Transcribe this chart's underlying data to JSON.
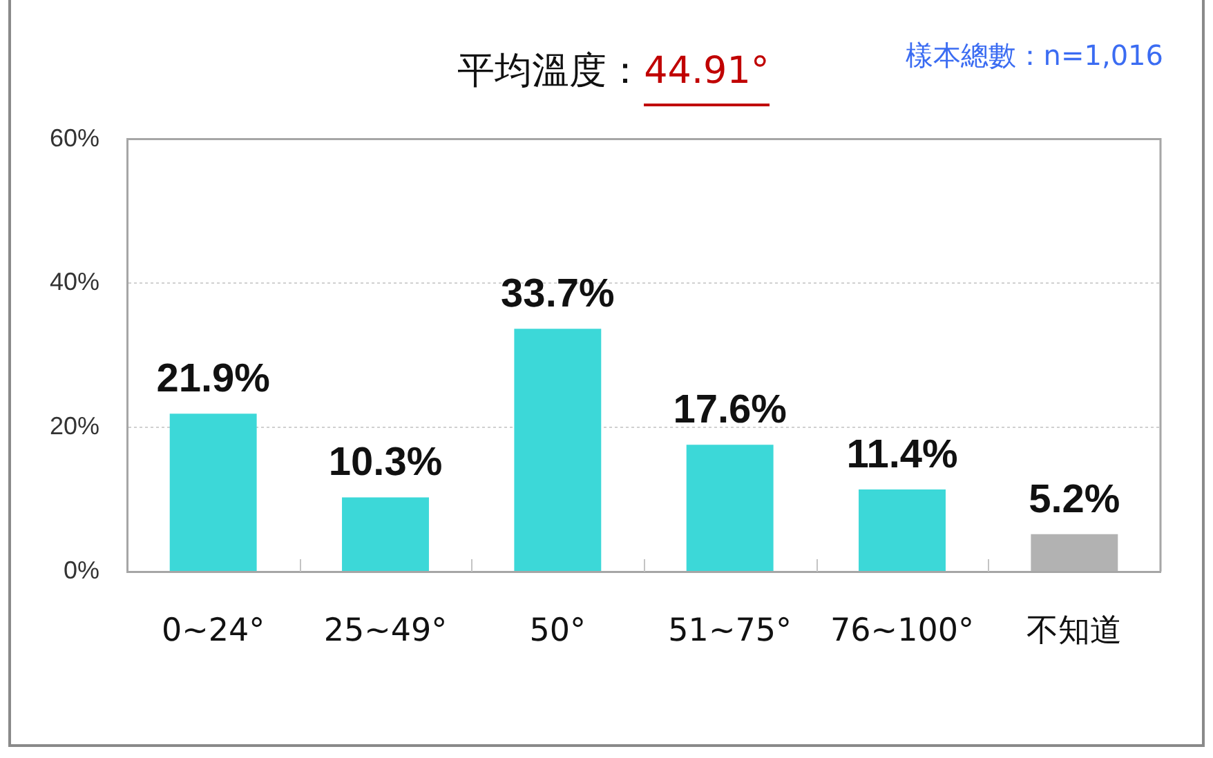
{
  "chart_data": {
    "type": "bar",
    "title": "平均溫度：44.91°",
    "annotations": [
      "樣本總數：n=1,016"
    ],
    "categories": [
      "0~24°",
      "25~49°",
      "50°",
      "51~75°",
      "76~100°",
      "不知道"
    ],
    "values": [
      21.9,
      10.3,
      33.7,
      17.6,
      11.4,
      5.2
    ],
    "colors": [
      "#3cd8d8",
      "#3cd8d8",
      "#3cd8d8",
      "#3cd8d8",
      "#3cd8d8",
      "#b2b2b2"
    ],
    "value_labels": [
      "21.9%",
      "10.3%",
      "33.7%",
      "17.6%",
      "11.4%",
      "5.2%"
    ],
    "ylim": [
      0,
      60
    ],
    "yticks": [
      {
        "value": 0,
        "label": "0%"
      },
      {
        "value": 20,
        "label": "20%"
      },
      {
        "value": 40,
        "label": "40%"
      },
      {
        "value": 60,
        "label": "60%"
      }
    ],
    "grid": "y",
    "legend": false
  }
}
